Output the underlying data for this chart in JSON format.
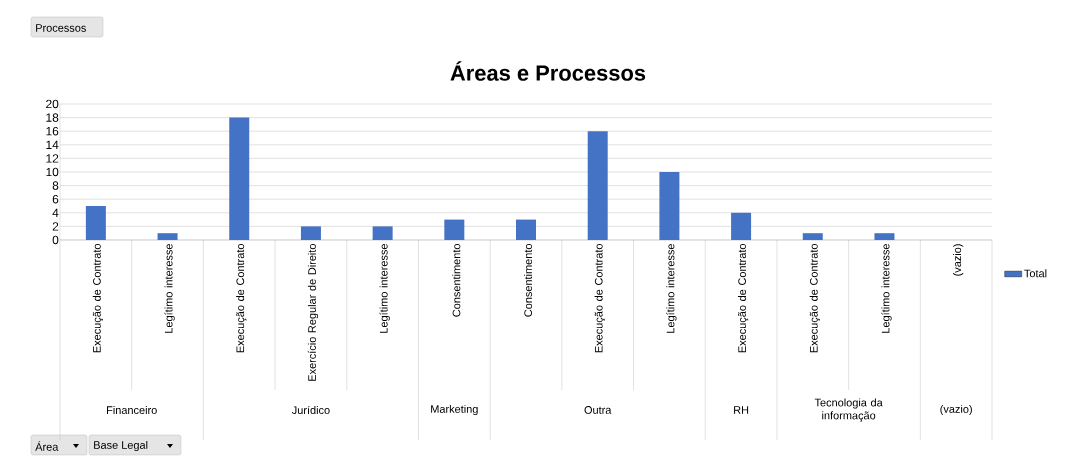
{
  "chart_data": {
    "type": "bar",
    "title": "Áreas e Processos",
    "categories": [
      "Execução de Contrato",
      "Legítimo interesse",
      "Execução de Contrato",
      "Exercício Regular de Direito",
      "Legítimo interesse",
      "Consentimento",
      "Consentimento",
      "Execução de Contrato",
      "Legítimo interesse",
      "Execução de Contrato",
      "Execução de Contrato",
      "Legítimo interesse",
      "(vazio)"
    ],
    "series": [
      {
        "name": "Total",
        "color": "#4472c4",
        "values": [
          5,
          1,
          18,
          2,
          2,
          3,
          3,
          16,
          10,
          4,
          1,
          1,
          null
        ]
      }
    ],
    "ylim": [
      0,
      20
    ],
    "yticks": [
      0,
      2,
      4,
      6,
      8,
      10,
      12,
      14,
      16,
      18,
      20
    ],
    "grid": "y",
    "legend": "right",
    "annotations": [
      "Processos",
      "Financeiro",
      "Jurídico",
      "Marketing",
      "Outra",
      "RH",
      "Tecnologia da informação",
      "(vazio)",
      "Área",
      "Base Legal"
    ]
  }
}
